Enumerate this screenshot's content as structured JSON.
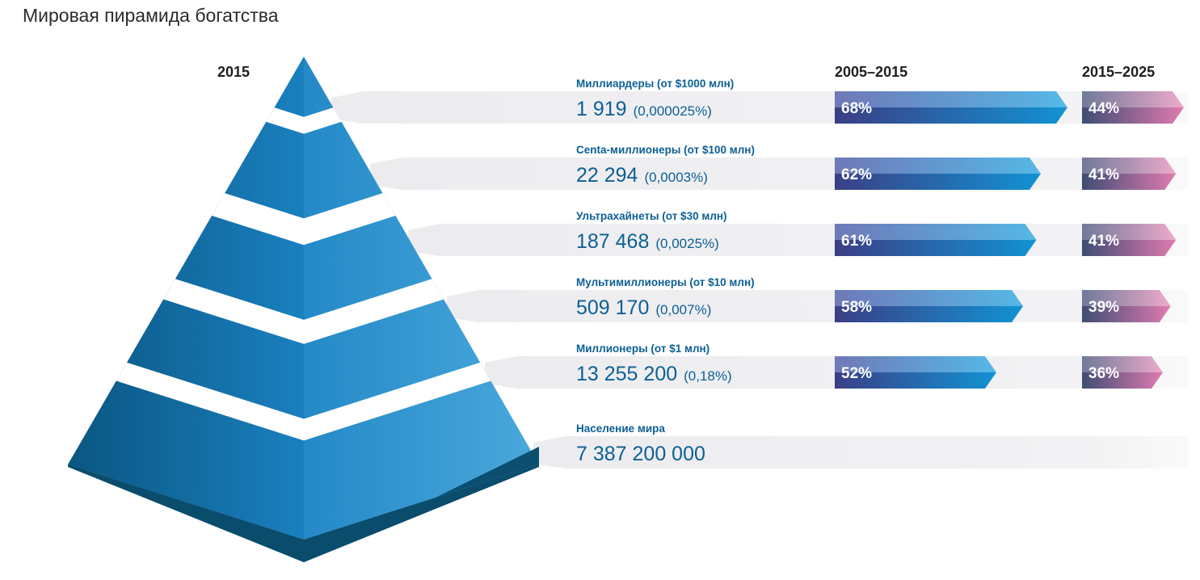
{
  "title": "Мировая пирамида богатства",
  "pyramid_year": "2015",
  "period_labels": [
    "2005–2015",
    "2015–2025"
  ],
  "colors": {
    "pyramid_light": "#43a3d7",
    "pyramid_dark": "#0c5b8e",
    "pyramid_base": "#0a4f70",
    "text_blue": "#0c5f95",
    "band_bg": "#efeff2",
    "arrow_start": "#3f3f87",
    "arrow_end": "#46b2e2",
    "pink_start": "#45567d",
    "pink_end": "#e98ab9"
  },
  "chart_data": {
    "type": "table",
    "title": "Мировая пирамида богатства",
    "columns": [
      "2015",
      "2005–2015",
      "2015–2025"
    ],
    "tiers": [
      {
        "label": "Миллиардеры (от $1000 млн)",
        "count": "1 919",
        "share": "(0,000025%)",
        "growth_2005_2015": 68,
        "growth_2015_2025": 44
      },
      {
        "label": "Centa-миллионеры (от $100 млн)",
        "count": "22 294",
        "share": "(0,0003%)",
        "growth_2005_2015": 62,
        "growth_2015_2025": 41
      },
      {
        "label": "Ультрахайнеты (от $30 млн)",
        "count": "187 468",
        "share": "(0,0025%)",
        "growth_2005_2015": 61,
        "growth_2015_2025": 41
      },
      {
        "label": "Мультимиллионеры (от $10 млн)",
        "count": "509 170",
        "share": "(0,007%)",
        "growth_2005_2015": 58,
        "growth_2015_2025": 39
      },
      {
        "label": "Миллионеры (от $1 млн)",
        "count": "13 255 200",
        "share": "(0,18%)",
        "growth_2005_2015": 52,
        "growth_2015_2025": 36
      },
      {
        "label": "Население мира",
        "count": "7 387 200 000",
        "share": "",
        "growth_2005_2015": null,
        "growth_2015_2025": null
      }
    ]
  }
}
